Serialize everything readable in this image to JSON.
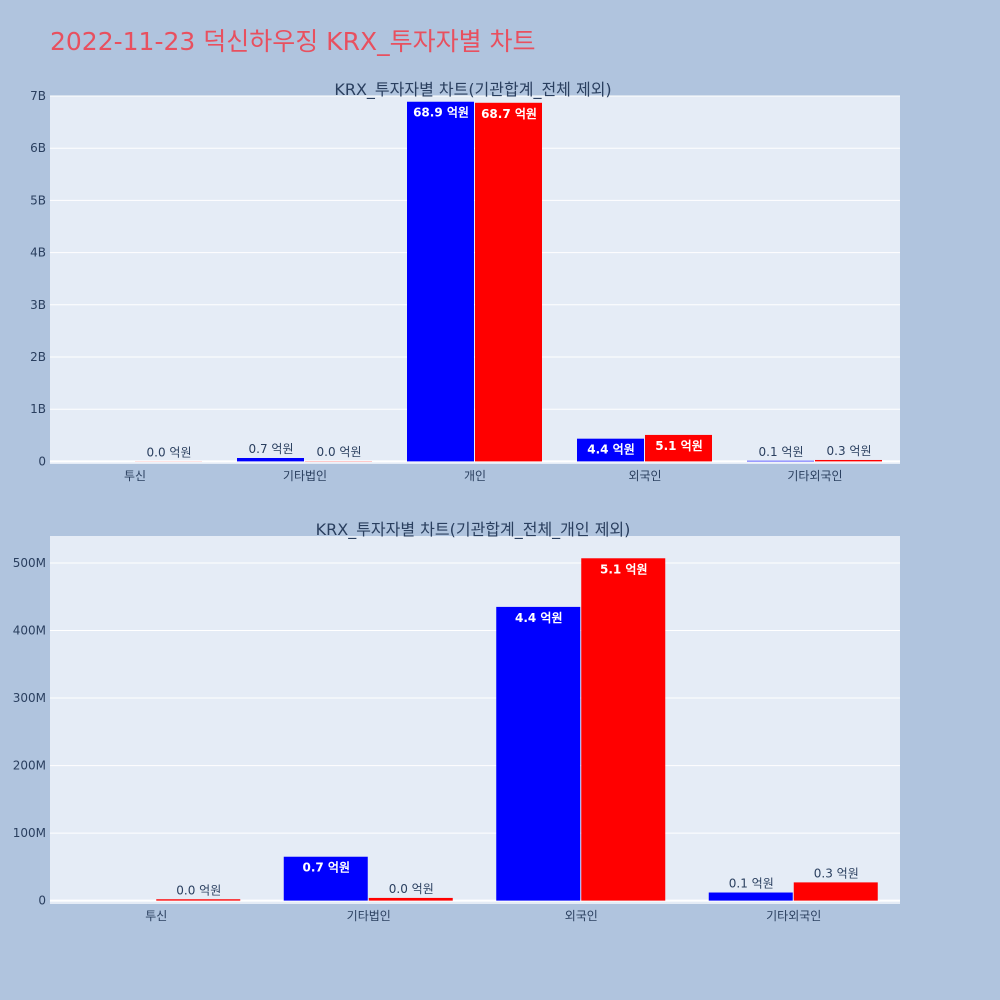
{
  "page_title": "2022-11-23 덕신하우징 KRX_투자자별 차트",
  "colors": {
    "series_a": "#0000ff",
    "series_b": "#ff0000"
  },
  "chart_data": [
    {
      "type": "bar",
      "title": "KRX_투자자별 차트(기관합계_전체 제외)",
      "xlabel": "",
      "ylabel": "",
      "categories": [
        "투신",
        "기타법인",
        "개인",
        "외국인",
        "기타외국인"
      ],
      "ylim": [
        -50000000,
        7000000000
      ],
      "yticks": [
        0,
        1000000000,
        2000000000,
        3000000000,
        4000000000,
        5000000000,
        6000000000,
        7000000000
      ],
      "ytick_labels": [
        "0",
        "1B",
        "2B",
        "3B",
        "4B",
        "5B",
        "6B",
        "7B"
      ],
      "grid": true,
      "series": [
        {
          "color": "#0000ff",
          "values": [
            0,
            65000000,
            6890000000,
            435000000,
            12000000
          ],
          "labels": [
            "",
            "0.7 억원",
            "68.9 억원",
            "4.4 억원",
            "0.1 억원"
          ]
        },
        {
          "color": "#ff0000",
          "values": [
            2000000,
            4000000,
            6870000000,
            507000000,
            27000000
          ],
          "labels": [
            "0.0 억원",
            "0.0 억원",
            "68.7 억원",
            "5.1 억원",
            "0.3 억원"
          ]
        }
      ]
    },
    {
      "type": "bar",
      "title": "KRX_투자자별 차트(기관합계_전체_개인 제외)",
      "xlabel": "",
      "ylabel": "",
      "categories": [
        "투신",
        "기타법인",
        "외국인",
        "기타외국인"
      ],
      "ylim": [
        -5000000,
        540000000
      ],
      "yticks": [
        0,
        100000000,
        200000000,
        300000000,
        400000000,
        500000000
      ],
      "ytick_labels": [
        "0",
        "100M",
        "200M",
        "300M",
        "400M",
        "500M"
      ],
      "grid": true,
      "series": [
        {
          "color": "#0000ff",
          "values": [
            0,
            65000000,
            435000000,
            12000000
          ],
          "labels": [
            "",
            "0.7 억원",
            "4.4 억원",
            "0.1 억원"
          ]
        },
        {
          "color": "#ff0000",
          "values": [
            2000000,
            4000000,
            507000000,
            27000000
          ],
          "labels": [
            "0.0 억원",
            "0.0 억원",
            "5.1 억원",
            "0.3 억원"
          ]
        }
      ]
    }
  ]
}
